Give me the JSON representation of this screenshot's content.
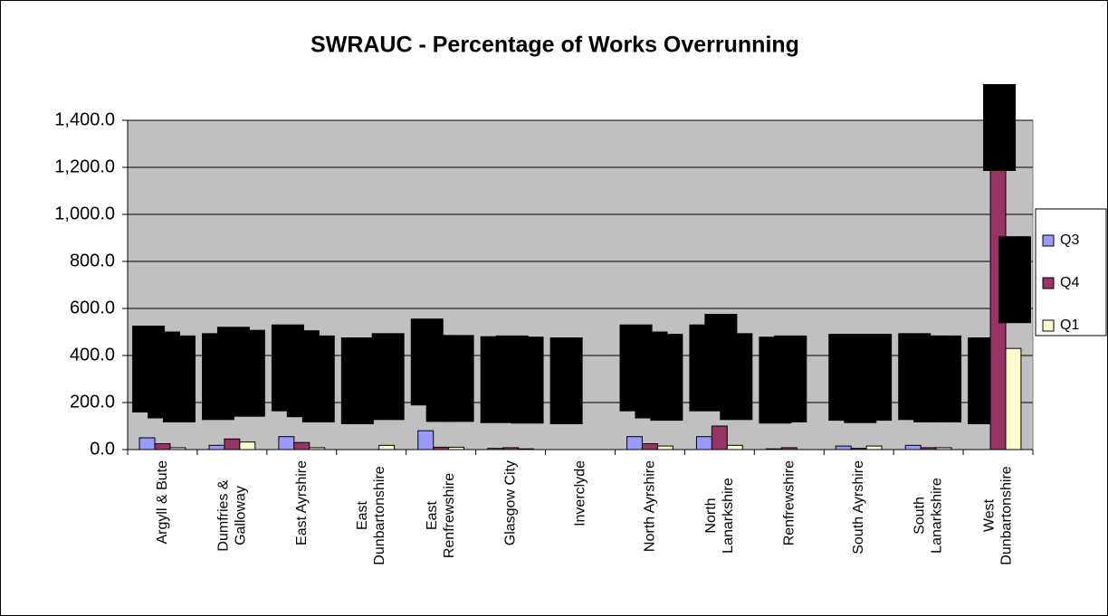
{
  "chart_data": {
    "type": "bar",
    "title": "SWRAUC - Percentage of Works Overrunning",
    "categories": [
      "Argyll & Bute",
      "Dumfries & Galloway",
      "East Ayrshire",
      "East Dunbartonshire",
      "East Renfrewshire",
      "Glasgow City",
      "Inverclyde",
      "North Ayrshire",
      "North Lanarkshire",
      "Renfrewshire",
      "South Ayrshire",
      "South Lanarkshire",
      "West Dunbartonshire"
    ],
    "series": [
      {
        "name": "Q3",
        "color": "#9999ff",
        "values": [
          50,
          18,
          55,
          0,
          80,
          5,
          0,
          55,
          55,
          3,
          15,
          18,
          0
        ]
      },
      {
        "name": "Q4",
        "color": "#993366",
        "values": [
          25,
          45,
          30,
          0,
          10,
          8,
          0,
          25,
          100,
          8,
          5,
          8,
          1250
        ]
      },
      {
        "name": "Q1",
        "color": "#ffffcc",
        "values": [
          8,
          32,
          8,
          18,
          10,
          3,
          0,
          15,
          18,
          0,
          15,
          8,
          430
        ]
      }
    ],
    "ylim": [
      0,
      1400
    ],
    "yticks": [
      {
        "value": 0,
        "label": "0.0"
      },
      {
        "value": 200,
        "label": "200.0"
      },
      {
        "value": 400,
        "label": "400.0"
      },
      {
        "value": 600,
        "label": "600.0"
      },
      {
        "value": 800,
        "label": "800.0"
      },
      {
        "value": 1000,
        "label": "1,000.0"
      },
      {
        "value": 1200,
        "label": "1,200.0"
      },
      {
        "value": 1400,
        "label": "1,400.0"
      }
    ],
    "grid": true,
    "legend": "right"
  }
}
